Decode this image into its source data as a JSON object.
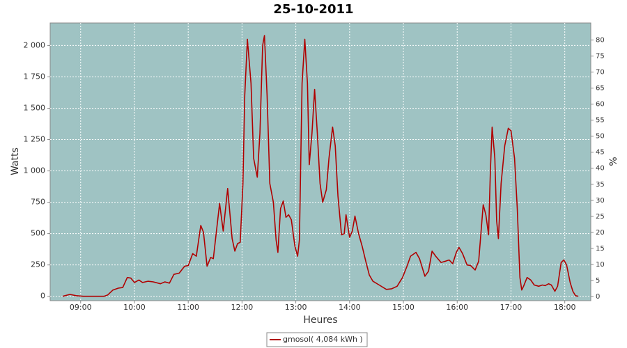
{
  "chart_data": {
    "type": "line",
    "title": "25-10-2011",
    "x_label": "Heures",
    "y_label": "Watts",
    "y2_label": "%",
    "x": [
      "08:40",
      "08:48",
      "08:55",
      "09:03",
      "09:26",
      "09:30",
      "09:36",
      "09:42",
      "09:47",
      "09:52",
      "09:56",
      "10:00",
      "10:05",
      "10:09",
      "10:15",
      "10:21",
      "10:29",
      "10:34",
      "10:39",
      "10:44",
      "10:50",
      "10:56",
      "11:00",
      "11:05",
      "11:09",
      "11:14",
      "11:17",
      "11:21",
      "11:25",
      "11:28",
      "11:35",
      "11:39",
      "11:44",
      "11:49",
      "11:52",
      "11:55",
      "11:58",
      "12:01",
      "12:03",
      "12:06",
      "12:10",
      "12:13",
      "12:17",
      "12:20",
      "12:23",
      "12:25",
      "12:28",
      "12:31",
      "12:35",
      "12:38",
      "12:40",
      "12:43",
      "12:46",
      "12:49",
      "12:52",
      "12:55",
      "12:59",
      "13:02",
      "13:04",
      "13:07",
      "13:10",
      "13:13",
      "13:15",
      "13:18",
      "13:21",
      "13:24",
      "13:27",
      "13:30",
      "13:34",
      "13:37",
      "13:41",
      "13:44",
      "13:47",
      "13:51",
      "13:54",
      "13:56",
      "14:00",
      "14:03",
      "14:06",
      "14:10",
      "14:14",
      "14:18",
      "14:22",
      "14:26",
      "14:33",
      "14:41",
      "14:47",
      "14:53",
      "14:59",
      "15:04",
      "15:08",
      "15:14",
      "15:18",
      "15:24",
      "15:28",
      "15:32",
      "15:36",
      "15:42",
      "15:47",
      "15:51",
      "15:55",
      "15:59",
      "16:02",
      "16:06",
      "16:11",
      "16:15",
      "16:20",
      "16:24",
      "16:29",
      "16:32",
      "16:35",
      "16:37",
      "16:39",
      "16:42",
      "16:44",
      "16:46",
      "16:49",
      "16:53",
      "16:57",
      "17:00",
      "17:04",
      "17:07",
      "17:10",
      "17:12",
      "17:14",
      "17:18",
      "17:22",
      "17:26",
      "17:31",
      "17:35",
      "17:38",
      "17:42",
      "17:45",
      "17:49",
      "17:52",
      "17:56",
      "17:59",
      "18:02",
      "18:06",
      "18:09",
      "18:12",
      "18:15"
    ],
    "series": [
      {
        "name": "gmosol( 4,084 kWh )",
        "color": "#b00000",
        "values": [
          0,
          15,
          5,
          0,
          0,
          10,
          50,
          65,
          70,
          150,
          145,
          110,
          130,
          110,
          120,
          115,
          100,
          115,
          105,
          175,
          185,
          240,
          245,
          340,
          320,
          565,
          510,
          240,
          310,
          300,
          740,
          520,
          860,
          460,
          360,
          420,
          430,
          900,
          1600,
          2050,
          1700,
          1100,
          950,
          1300,
          2000,
          2080,
          1600,
          900,
          750,
          450,
          350,
          700,
          760,
          630,
          650,
          610,
          400,
          320,
          450,
          1700,
          2050,
          1700,
          1050,
          1300,
          1650,
          1300,
          900,
          750,
          850,
          1100,
          1350,
          1200,
          800,
          490,
          500,
          650,
          470,
          520,
          640,
          500,
          400,
          280,
          170,
          120,
          90,
          55,
          60,
          80,
          150,
          240,
          320,
          350,
          300,
          160,
          200,
          360,
          320,
          270,
          280,
          290,
          260,
          350,
          390,
          340,
          250,
          245,
          210,
          280,
          730,
          650,
          490,
          1000,
          1350,
          1100,
          600,
          460,
          900,
          1200,
          1340,
          1320,
          1100,
          700,
          150,
          50,
          80,
          150,
          130,
          90,
          80,
          90,
          85,
          100,
          90,
          40,
          80,
          270,
          290,
          250,
          110,
          40,
          5,
          0
        ]
      }
    ],
    "xlim": [
      "08:26",
      "18:29"
    ],
    "xticks": [
      "09:00",
      "10:00",
      "11:00",
      "12:00",
      "13:00",
      "14:00",
      "15:00",
      "16:00",
      "17:00",
      "18:00"
    ],
    "ylim": [
      -35,
      2180
    ],
    "yticks": [
      0,
      250,
      500,
      750,
      {
        "value": 1000,
        "label": "1 000"
      },
      {
        "value": 1250,
        "label": "1 250"
      },
      {
        "value": 1500,
        "label": "1 500"
      },
      {
        "value": 1750,
        "label": "1 750"
      },
      {
        "value": 2000,
        "label": "2 000"
      }
    ],
    "y2lim": [
      -1.3,
      85.3
    ],
    "y2ticks": [
      0,
      5,
      10,
      15,
      20,
      25,
      30,
      35,
      40,
      45,
      50,
      55,
      60,
      65,
      70,
      75,
      80
    ],
    "grid": true,
    "plot_background": "#9fc3c3",
    "legend": "bottom"
  }
}
